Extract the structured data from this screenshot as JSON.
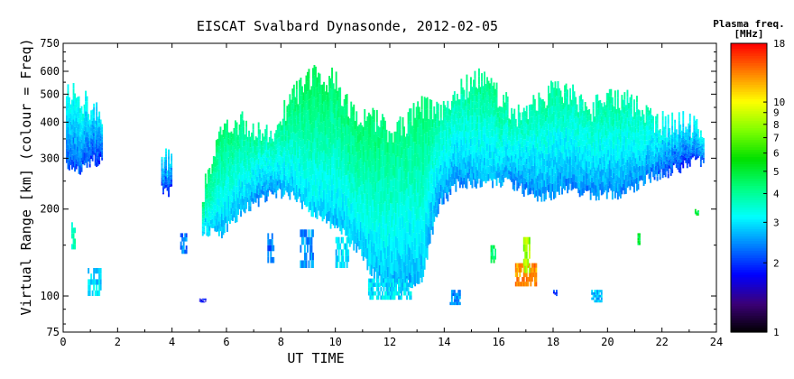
{
  "chart_data": {
    "type": "heatmap",
    "title": "EISCAT Svalbard Dynasonde, 2012-02-05",
    "xlabel": "UT TIME",
    "ylabel": "Virtual Range [km] (colour = Freq)",
    "xlim": [
      0,
      24
    ],
    "ylim": [
      75,
      750
    ],
    "y_scale": "log",
    "x_ticks": [
      0,
      2,
      4,
      6,
      8,
      10,
      12,
      14,
      16,
      18,
      20,
      22,
      24
    ],
    "x_tick_labels": [
      "0",
      "2",
      "4",
      "6",
      "8",
      "10",
      "12",
      "14",
      "16",
      "18",
      "20",
      "22",
      "24"
    ],
    "y_ticks": [
      75,
      100,
      200,
      300,
      400,
      500,
      600,
      750
    ],
    "y_tick_labels": [
      "75",
      "100",
      "200",
      "300",
      "400",
      "500",
      "600",
      "750"
    ],
    "colorbar": {
      "title": "Plasma freq.",
      "unit": "[MHz]",
      "scale": "log",
      "range": [
        1,
        18
      ],
      "ticks": [
        1,
        2,
        3,
        4,
        5,
        6,
        7,
        8,
        9,
        10,
        18
      ],
      "tick_labels": [
        "1",
        "2",
        "3",
        "4",
        "5",
        "6",
        "7",
        "8",
        "9",
        "10",
        "18"
      ],
      "colormap": [
        "#000000",
        "#3c0078",
        "#0000ff",
        "#0080ff",
        "#00ffff",
        "#00ff80",
        "#00e000",
        "#80ff00",
        "#ffff00",
        "#ff8000",
        "#ff0000"
      ]
    },
    "main_band": [
      {
        "x": 0.1,
        "low": 290,
        "high": 540,
        "freq": 3.0
      },
      {
        "x": 0.6,
        "low": 280,
        "high": 510,
        "freq": 3.1
      },
      {
        "x": 1.1,
        "low": 300,
        "high": 460,
        "freq": 2.8
      },
      {
        "x": 3.6,
        "low": 235,
        "high": 320,
        "freq": 2.8
      },
      {
        "x": 5.1,
        "low": 170,
        "high": 230,
        "freq": 4.0
      },
      {
        "x": 5.8,
        "low": 170,
        "high": 400,
        "freq": 4.0
      },
      {
        "x": 6.5,
        "low": 200,
        "high": 420,
        "freq": 3.8
      },
      {
        "x": 7.6,
        "low": 230,
        "high": 380,
        "freq": 3.5
      },
      {
        "x": 8.3,
        "low": 230,
        "high": 500,
        "freq": 4.0
      },
      {
        "x": 9.1,
        "low": 200,
        "high": 610,
        "freq": 4.2
      },
      {
        "x": 9.9,
        "low": 180,
        "high": 590,
        "freq": 4.0
      },
      {
        "x": 10.7,
        "low": 150,
        "high": 430,
        "freq": 4.0
      },
      {
        "x": 11.4,
        "low": 120,
        "high": 430,
        "freq": 4.0
      },
      {
        "x": 12.0,
        "low": 105,
        "high": 390,
        "freq": 3.8
      },
      {
        "x": 12.6,
        "low": 110,
        "high": 420,
        "freq": 3.8
      },
      {
        "x": 13.2,
        "low": 120,
        "high": 480,
        "freq": 4.0
      },
      {
        "x": 13.8,
        "low": 210,
        "high": 460,
        "freq": 3.6
      },
      {
        "x": 14.5,
        "low": 250,
        "high": 530,
        "freq": 3.5
      },
      {
        "x": 15.2,
        "low": 250,
        "high": 600,
        "freq": 3.8
      },
      {
        "x": 15.9,
        "low": 255,
        "high": 530,
        "freq": 3.8
      },
      {
        "x": 16.6,
        "low": 245,
        "high": 450,
        "freq": 3.5
      },
      {
        "x": 17.3,
        "low": 225,
        "high": 480,
        "freq": 3.5
      },
      {
        "x": 18.0,
        "low": 230,
        "high": 560,
        "freq": 3.6
      },
      {
        "x": 18.7,
        "low": 240,
        "high": 520,
        "freq": 3.5
      },
      {
        "x": 19.4,
        "low": 225,
        "high": 470,
        "freq": 3.5
      },
      {
        "x": 20.1,
        "low": 230,
        "high": 520,
        "freq": 3.6
      },
      {
        "x": 20.8,
        "low": 235,
        "high": 490,
        "freq": 3.5
      },
      {
        "x": 21.5,
        "low": 260,
        "high": 440,
        "freq": 3.4
      },
      {
        "x": 22.2,
        "low": 275,
        "high": 410,
        "freq": 3.0
      },
      {
        "x": 22.9,
        "low": 290,
        "high": 420,
        "freq": 2.8
      },
      {
        "x": 23.2,
        "low": 300,
        "high": 400,
        "freq": 3.0
      }
    ],
    "low_echoes": [
      {
        "x0": 0.3,
        "x1": 0.4,
        "low": 145,
        "high": 180,
        "freq": 3.8
      },
      {
        "x0": 0.9,
        "x1": 1.4,
        "low": 100,
        "high": 125,
        "freq": 3.0
      },
      {
        "x0": 4.3,
        "x1": 4.5,
        "low": 140,
        "high": 165,
        "freq": 2.4
      },
      {
        "x0": 5.0,
        "x1": 5.2,
        "low": 95,
        "high": 98,
        "freq": 1.8
      },
      {
        "x0": 7.5,
        "x1": 7.7,
        "low": 130,
        "high": 165,
        "freq": 2.3
      },
      {
        "x0": 8.7,
        "x1": 9.2,
        "low": 125,
        "high": 170,
        "freq": 2.5
      },
      {
        "x0": 10.0,
        "x1": 10.5,
        "low": 125,
        "high": 160,
        "freq": 3.0
      },
      {
        "x0": 11.2,
        "x1": 12.8,
        "low": 97,
        "high": 115,
        "freq": 3.0
      },
      {
        "x0": 14.2,
        "x1": 14.6,
        "low": 93,
        "high": 105,
        "freq": 2.5
      },
      {
        "x0": 15.7,
        "x1": 15.9,
        "low": 130,
        "high": 150,
        "freq": 4.5
      },
      {
        "x0": 16.6,
        "x1": 17.4,
        "low": 108,
        "high": 130,
        "freq": 13.0
      },
      {
        "x0": 16.9,
        "x1": 17.1,
        "low": 120,
        "high": 160,
        "freq": 8.0
      },
      {
        "x0": 18.0,
        "x1": 18.1,
        "low": 100,
        "high": 105,
        "freq": 2.0
      },
      {
        "x0": 19.4,
        "x1": 19.8,
        "low": 95,
        "high": 105,
        "freq": 2.8
      },
      {
        "x0": 21.1,
        "x1": 21.2,
        "low": 150,
        "high": 165,
        "freq": 5.0
      },
      {
        "x0": 23.2,
        "x1": 23.3,
        "low": 190,
        "high": 200,
        "freq": 5.0
      }
    ]
  }
}
